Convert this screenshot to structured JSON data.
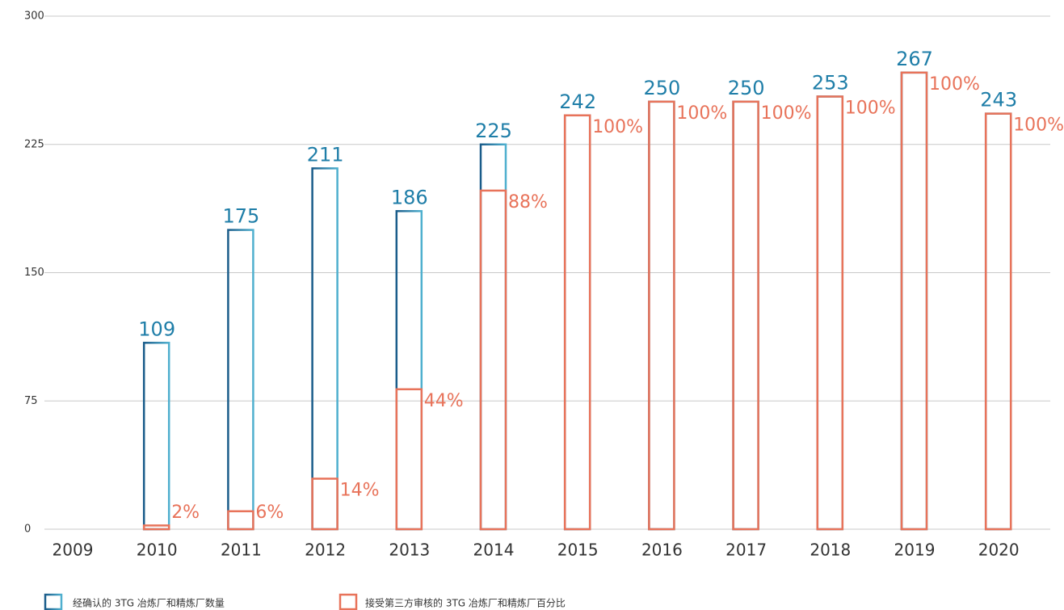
{
  "chart_data": {
    "type": "bar",
    "categories": [
      "2009",
      "2010",
      "2011",
      "2012",
      "2013",
      "2014",
      "2015",
      "2016",
      "2017",
      "2018",
      "2019",
      "2020"
    ],
    "series": [
      {
        "name": "经确认的 3TG 冶炼厂和精炼厂数量",
        "color": "#1f7ea8",
        "values": [
          null,
          109,
          175,
          211,
          186,
          225,
          242,
          250,
          250,
          253,
          267,
          243
        ]
      },
      {
        "name": "接受第三方审核的 3TG 冶炼厂和精炼厂百分比",
        "color": "#e8735a",
        "values": [
          null,
          2,
          6,
          14,
          44,
          88,
          100,
          100,
          100,
          100,
          100,
          100
        ],
        "value_labels": [
          null,
          "2%",
          "6%",
          "14%",
          "44%",
          "88%",
          "100%",
          "100%",
          "100%",
          "100%",
          "100%",
          "100%"
        ]
      }
    ],
    "ylim": [
      0,
      300
    ],
    "yticks": [
      0,
      75,
      150,
      225,
      300
    ],
    "grid": true
  }
}
